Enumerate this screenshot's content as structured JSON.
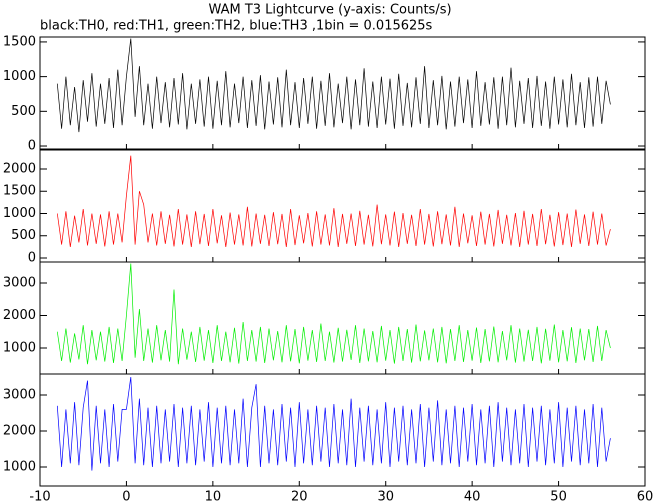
{
  "chart_data": {
    "type": "line",
    "title": "WAM T3 Lightcurve (y-axis: Counts/s)",
    "subtitle": "black:TH0, red:TH1, green:TH2, blue:TH3 ,1bin = 0.015625s",
    "xlim": [
      -10,
      60
    ],
    "xticks": [
      -10,
      0,
      10,
      20,
      30,
      40,
      50,
      60
    ],
    "x": [
      -8,
      -7.5,
      -7,
      -6.5,
      -6,
      -5.5,
      -5,
      -4.5,
      -4,
      -3.5,
      -3,
      -2.5,
      -2,
      -1.5,
      -1,
      -0.5,
      0,
      0.5,
      1,
      1.5,
      2,
      2.5,
      3,
      3.5,
      4,
      4.5,
      5,
      5.5,
      6,
      6.5,
      7,
      7.5,
      8,
      8.5,
      9,
      9.5,
      10,
      10.5,
      11,
      11.5,
      12,
      12.5,
      13,
      13.5,
      14,
      14.5,
      15,
      15.5,
      16,
      16.5,
      17,
      17.5,
      18,
      18.5,
      19,
      19.5,
      20,
      20.5,
      21,
      21.5,
      22,
      22.5,
      23,
      23.5,
      24,
      24.5,
      25,
      25.5,
      26,
      26.5,
      27,
      27.5,
      28,
      28.5,
      29,
      29.5,
      30,
      30.5,
      31,
      31.5,
      32,
      32.5,
      33,
      33.5,
      34,
      34.5,
      35,
      35.5,
      36,
      36.5,
      37,
      37.5,
      38,
      38.5,
      39,
      39.5,
      40,
      40.5,
      41,
      41.5,
      42,
      42.5,
      43,
      43.5,
      44,
      44.5,
      45,
      45.5,
      46,
      46.5,
      47,
      47.5,
      48,
      48.5,
      49,
      49.5,
      50,
      50.5,
      51,
      51.5,
      52,
      52.5,
      53,
      53.5,
      54,
      54.5,
      55,
      55.5,
      56
    ],
    "series": [
      {
        "color": "#000000",
        "ylim": [
          -43,
          1571
        ],
        "yticks": [
          0,
          500,
          1000,
          1500
        ],
        "values": [
          900,
          250,
          1000,
          300,
          850,
          200,
          950,
          350,
          1050,
          280,
          900,
          320,
          980,
          260,
          1100,
          300,
          1000,
          1550,
          420,
          1150,
          300,
          900,
          250,
          1000,
          330,
          920,
          270,
          980,
          310,
          1050,
          240,
          900,
          320,
          960,
          280,
          1000,
          250,
          940,
          300,
          1080,
          270,
          900,
          330,
          1000,
          260,
          950,
          290,
          1020,
          240,
          930,
          310,
          990,
          270,
          1100,
          300,
          920,
          260,
          980,
          320,
          1000,
          250,
          940,
          290,
          1050,
          270,
          900,
          330,
          1000,
          240,
          960,
          300,
          1120,
          280,
          930,
          260,
          1000,
          310,
          970,
          250,
          1040,
          290,
          910,
          270,
          990,
          320,
          1150,
          260,
          950,
          300,
          1010,
          240,
          930,
          280,
          1000,
          330,
          960,
          260,
          1080,
          290,
          920,
          310,
          990,
          250,
          1000,
          300,
          1130,
          270,
          940,
          320,
          980,
          260,
          1010,
          290,
          930,
          250,
          1000,
          310,
          960,
          270,
          1040,
          300,
          920,
          260,
          990,
          280,
          1000,
          320,
          940,
          600
        ]
      },
      {
        "color": "#ff0000",
        "ylim": [
          -90,
          2427
        ],
        "yticks": [
          0,
          500,
          1000,
          1500,
          2000
        ],
        "values": [
          1000,
          300,
          1050,
          250,
          950,
          350,
          1100,
          280,
          1000,
          320,
          980,
          260,
          1050,
          300,
          1000,
          350,
          1400,
          2300,
          300,
          1500,
          1200,
          350,
          1000,
          280,
          1050,
          320,
          970,
          260,
          1100,
          300,
          980,
          250,
          1050,
          310,
          990,
          270,
          1100,
          330,
          960,
          250,
          1020,
          300,
          980,
          280,
          1150,
          260,
          1000,
          320,
          970,
          270,
          1030,
          310,
          990,
          250,
          1100,
          290,
          960,
          330,
          1010,
          260,
          1050,
          300,
          980,
          280,
          1120,
          250,
          990,
          320,
          1000,
          270,
          1060,
          300,
          970,
          260,
          1200,
          310,
          980,
          280,
          1040,
          250,
          1010,
          320,
          970,
          270,
          1100,
          300,
          990,
          260,
          1050,
          310,
          980,
          280,
          1150,
          250,
          1000,
          330,
          960,
          270,
          1040,
          300,
          990,
          260,
          1080,
          320,
          970,
          280,
          1010,
          250,
          1060,
          300,
          990,
          270,
          1100,
          310,
          970,
          260,
          1030,
          290,
          1000,
          250,
          1090,
          320,
          980,
          270,
          1040,
          300,
          1000,
          280,
          650
        ]
      },
      {
        "color": "#00ee00",
        "ylim": [
          200,
          3646
        ],
        "yticks": [
          1000,
          2000,
          3000
        ],
        "values": [
          1500,
          600,
          1600,
          550,
          1450,
          650,
          1700,
          500,
          1550,
          620,
          1500,
          580,
          1650,
          540,
          1600,
          600,
          2000,
          3600,
          700,
          2200,
          600,
          1600,
          550,
          1700,
          620,
          1550,
          580,
          2800,
          500,
          1600,
          640,
          1500,
          570,
          1650,
          610,
          1550,
          540,
          1700,
          600,
          1500,
          560,
          1620,
          520,
          1800,
          600,
          1550,
          580,
          1650,
          540,
          1600,
          620,
          1520,
          560,
          1700,
          590,
          1580,
          530,
          1650,
          610,
          1550,
          570,
          1750,
          600,
          1500,
          550,
          1620,
          580,
          1560,
          630,
          1700,
          540,
          1600,
          590,
          1520,
          560,
          1680,
          610,
          1550,
          520,
          1650,
          600,
          1580,
          550,
          1720,
          590,
          1540,
          620,
          1600,
          560,
          1650,
          530,
          1580,
          600,
          1700,
          570,
          1550,
          610,
          1630,
          540,
          1580,
          590,
          1660,
          560,
          1520,
          620,
          1700,
          550,
          1600,
          580,
          1560,
          600,
          1650,
          530,
          1590,
          610,
          1720,
          560,
          1550,
          590,
          1640,
          540,
          1600,
          620,
          1580,
          570,
          1680,
          600,
          1550,
          1000
        ]
      },
      {
        "color": "#0000ff",
        "ylim": [
          472,
          3583
        ],
        "yticks": [
          1000,
          2000,
          3000
        ],
        "values": [
          2700,
          1000,
          2600,
          1100,
          2800,
          1050,
          2650,
          3400,
          900,
          2700,
          1100,
          2600,
          1000,
          2750,
          1150,
          2600,
          2600,
          3500,
          1100,
          2900,
          1050,
          2650,
          1000,
          2700,
          1100,
          2600,
          1150,
          2750,
          1000,
          2650,
          1100,
          2700,
          1050,
          2600,
          1150,
          2800,
          1000,
          2650,
          1100,
          2700,
          1050,
          2600,
          1100,
          2900,
          1000,
          2650,
          3300,
          1000,
          2700,
          1100,
          2600,
          1050,
          2750,
          1150,
          2650,
          1000,
          2800,
          1100,
          2600,
          1050,
          2700,
          1150,
          2650,
          1000,
          2750,
          1100,
          2600,
          1050,
          2900,
          1000,
          2650,
          1150,
          2700,
          1050,
          2600,
          1100,
          2800,
          1000,
          2650,
          1150,
          2700,
          1050,
          2600,
          1100,
          2750,
          1000,
          2650,
          1150,
          2850,
          1050,
          2600,
          1100,
          2700,
          1000,
          2650,
          1150,
          2750,
          1050,
          2600,
          1100,
          2700,
          1000,
          2800,
          1150,
          2650,
          1050,
          2600,
          1100,
          2750,
          1000,
          2650,
          1150,
          2700,
          1050,
          2600,
          1100,
          2800,
          1000,
          2650,
          1150,
          2700,
          1050,
          2600,
          1100,
          2750,
          1000,
          2650,
          1150,
          1800
        ]
      }
    ]
  }
}
